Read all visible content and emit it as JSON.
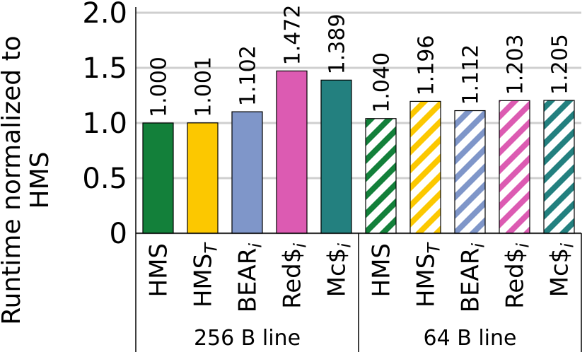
{
  "chart_data": {
    "type": "bar",
    "ylabel": [
      "Runtime normalized to",
      "HMS"
    ],
    "categories": [
      "HMS",
      "HMS",
      "BEAR",
      "Red$",
      "Mc$",
      "HMS",
      "HMS",
      "BEAR",
      "Red$",
      "Mc$"
    ],
    "category_subscripts": [
      null,
      "T",
      "i",
      "i",
      "i",
      null,
      "T",
      "i",
      "i",
      "i"
    ],
    "groups": [
      "256 B line",
      "64 B line"
    ],
    "values": [
      1.0,
      1.001,
      1.102,
      1.472,
      1.389,
      1.04,
      1.196,
      1.112,
      1.203,
      1.205
    ],
    "value_labels": [
      "1.000",
      "1.001",
      "1.102",
      "1.472",
      "1.389",
      "1.040",
      "1.196",
      "1.112",
      "1.203",
      "1.205"
    ],
    "colors": [
      "#13803a",
      "#fcc800",
      "#7f96c9",
      "#dc5bb2",
      "#23807f",
      "#13803a",
      "#fcc800",
      "#7f96c9",
      "#dc5bb2",
      "#23807f"
    ],
    "hatched": [
      false,
      false,
      false,
      false,
      false,
      true,
      true,
      true,
      true,
      true
    ],
    "ylim": [
      0,
      2.0
    ],
    "yticks": [
      0,
      0.5,
      {
        "value": 1.0,
        "label": "1.0"
      },
      1.5,
      {
        "value": 2.0,
        "label": "2.0"
      }
    ],
    "grid": true
  }
}
